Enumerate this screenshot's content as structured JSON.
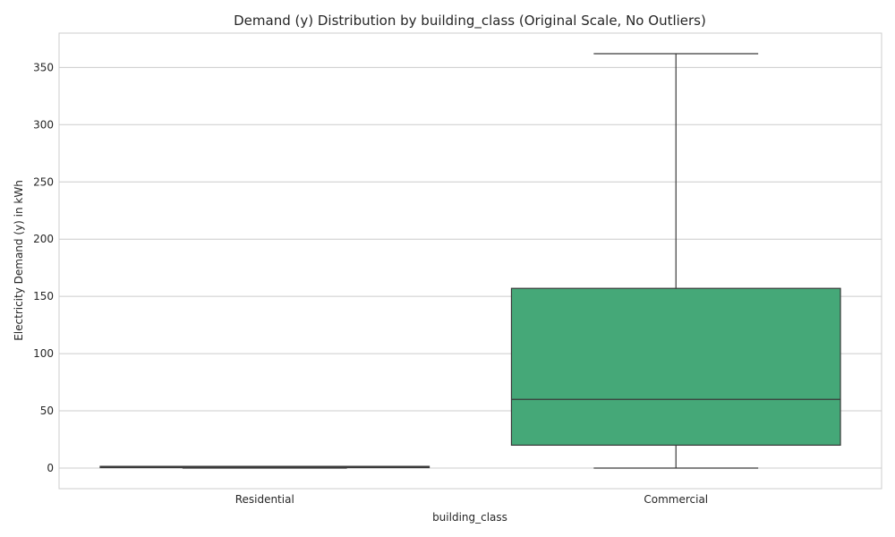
{
  "chart_data": {
    "type": "box",
    "title": "Demand (y) Distribution by building_class (Original Scale, No Outliers)",
    "xlabel": "building_class",
    "ylabel": "Electricity Demand (y) in kWh",
    "ylim": [
      -18,
      380
    ],
    "yticks": [
      0,
      50,
      100,
      150,
      200,
      250,
      300,
      350
    ],
    "grid": true,
    "categories": [
      "Residential",
      "Commercial"
    ],
    "boxes": [
      {
        "category": "Residential",
        "whisker_low": 0,
        "q1": 0.4,
        "median": 0.8,
        "q3": 1.5,
        "whisker_high": 1.5,
        "color": "#3274a1"
      },
      {
        "category": "Commercial",
        "whisker_low": 0,
        "q1": 20,
        "median": 60,
        "q3": 157,
        "whisker_high": 362,
        "color": "#45a878"
      }
    ]
  }
}
